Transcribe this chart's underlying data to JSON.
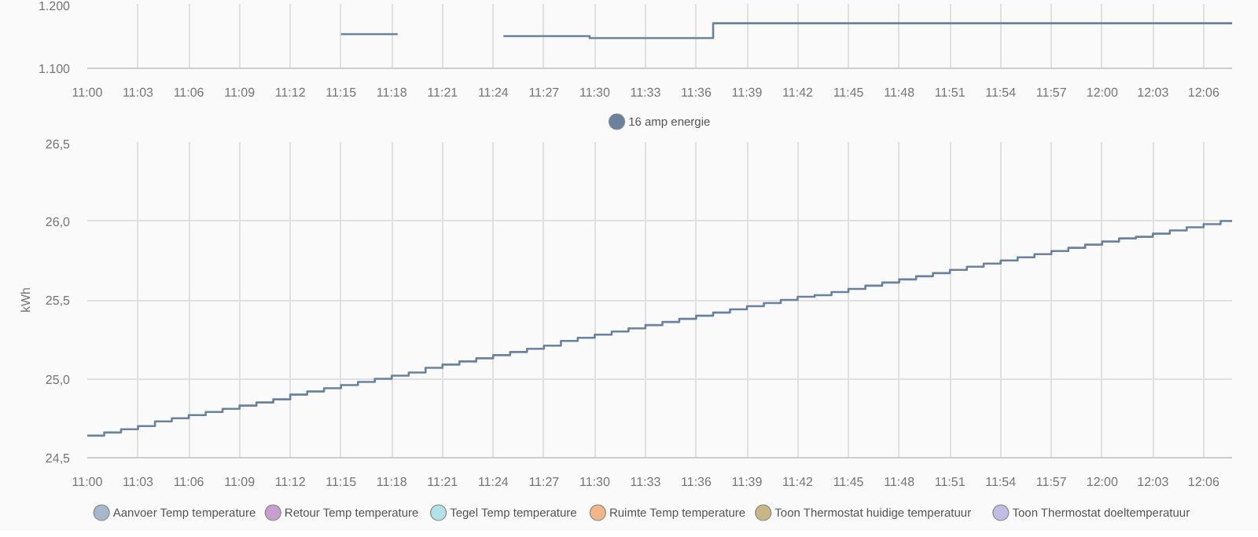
{
  "chart_data": [
    {
      "type": "step",
      "x": [
        11.25,
        11.3058,
        11.41,
        11.495,
        11.6167,
        12.128
      ],
      "series": [
        {
          "color": "#6b829e",
          "values": [
            1153,
            null,
            1150,
            1147,
            1170,
            1170
          ]
        }
      ],
      "xlim": [
        11.0,
        12.128
      ],
      "xticks": [
        {
          "value": 11.0,
          "label": "11:00"
        },
        {
          "value": 11.05,
          "label": "11:03"
        },
        {
          "value": 11.1,
          "label": "11:06"
        },
        {
          "value": 11.15,
          "label": "11:09"
        },
        {
          "value": 11.2,
          "label": "11:12"
        },
        {
          "value": 11.25,
          "label": "11:15"
        },
        {
          "value": 11.3,
          "label": "11:18"
        },
        {
          "value": 11.35,
          "label": "11:21"
        },
        {
          "value": 11.4,
          "label": "11:24"
        },
        {
          "value": 11.45,
          "label": "11:27"
        },
        {
          "value": 11.5,
          "label": "11:30"
        },
        {
          "value": 11.55,
          "label": "11:33"
        },
        {
          "value": 11.6,
          "label": "11:36"
        },
        {
          "value": 11.65,
          "label": "11:39"
        },
        {
          "value": 11.7,
          "label": "11:42"
        },
        {
          "value": 11.75,
          "label": "11:45"
        },
        {
          "value": 11.8,
          "label": "11:48"
        },
        {
          "value": 11.85,
          "label": "11:51"
        },
        {
          "value": 11.9,
          "label": "11:54"
        },
        {
          "value": 11.95,
          "label": "11:57"
        },
        {
          "value": 12.0,
          "label": "12:00"
        },
        {
          "value": 12.05,
          "label": "12:03"
        },
        {
          "value": 12.1,
          "label": "12:06"
        }
      ],
      "ylim": [
        1100,
        1200
      ],
      "yticks": [
        {
          "value": 1100,
          "label": "1.100"
        },
        {
          "value": 1200,
          "label": "1.200"
        }
      ],
      "grid": true
    },
    {
      "type": "step",
      "ylabel": "kWh",
      "x": [
        11.0,
        11.0167,
        11.0333,
        11.05,
        11.0667,
        11.0833,
        11.1,
        11.1167,
        11.1333,
        11.15,
        11.1667,
        11.1833,
        11.2,
        11.2167,
        11.2333,
        11.25,
        11.2667,
        11.2833,
        11.3,
        11.3167,
        11.3333,
        11.35,
        11.3667,
        11.3833,
        11.4,
        11.4167,
        11.4333,
        11.45,
        11.4667,
        11.4833,
        11.5,
        11.5167,
        11.5333,
        11.55,
        11.5667,
        11.5833,
        11.6,
        11.6167,
        11.6333,
        11.65,
        11.6667,
        11.6833,
        11.7,
        11.7167,
        11.7333,
        11.75,
        11.7667,
        11.7833,
        11.8,
        11.8167,
        11.8333,
        11.85,
        11.8667,
        11.8833,
        11.9,
        11.9167,
        11.9333,
        11.95,
        11.9667,
        11.9833,
        12.0,
        12.0167,
        12.0333,
        12.05,
        12.0667,
        12.0833,
        12.1,
        12.1167,
        12.128
      ],
      "series": [
        {
          "name": "16 amp energie",
          "color": "#6b829e",
          "values": [
            24.64,
            24.66,
            24.68,
            24.7,
            24.73,
            24.75,
            24.77,
            24.79,
            24.81,
            24.83,
            24.85,
            24.87,
            24.9,
            24.92,
            24.94,
            24.96,
            24.98,
            25.0,
            25.02,
            25.04,
            25.07,
            25.09,
            25.11,
            25.13,
            25.15,
            25.17,
            25.19,
            25.21,
            25.24,
            25.26,
            25.28,
            25.3,
            25.32,
            25.34,
            25.36,
            25.38,
            25.4,
            25.42,
            25.44,
            25.46,
            25.48,
            25.5,
            25.52,
            25.53,
            25.55,
            25.57,
            25.59,
            25.61,
            25.63,
            25.65,
            25.67,
            25.69,
            25.71,
            25.73,
            25.75,
            25.77,
            25.79,
            25.81,
            25.83,
            25.85,
            25.87,
            25.89,
            25.9,
            25.92,
            25.94,
            25.96,
            25.98,
            26.0,
            26.0
          ]
        }
      ],
      "xlim": [
        11.0,
        12.128
      ],
      "xticks": [
        {
          "value": 11.0,
          "label": "11:00"
        },
        {
          "value": 11.05,
          "label": "11:03"
        },
        {
          "value": 11.1,
          "label": "11:06"
        },
        {
          "value": 11.15,
          "label": "11:09"
        },
        {
          "value": 11.2,
          "label": "11:12"
        },
        {
          "value": 11.25,
          "label": "11:15"
        },
        {
          "value": 11.3,
          "label": "11:18"
        },
        {
          "value": 11.35,
          "label": "11:21"
        },
        {
          "value": 11.4,
          "label": "11:24"
        },
        {
          "value": 11.45,
          "label": "11:27"
        },
        {
          "value": 11.5,
          "label": "11:30"
        },
        {
          "value": 11.55,
          "label": "11:33"
        },
        {
          "value": 11.6,
          "label": "11:36"
        },
        {
          "value": 11.65,
          "label": "11:39"
        },
        {
          "value": 11.7,
          "label": "11:42"
        },
        {
          "value": 11.75,
          "label": "11:45"
        },
        {
          "value": 11.8,
          "label": "11:48"
        },
        {
          "value": 11.85,
          "label": "11:51"
        },
        {
          "value": 11.9,
          "label": "11:54"
        },
        {
          "value": 11.95,
          "label": "11:57"
        },
        {
          "value": 12.0,
          "label": "12:00"
        },
        {
          "value": 12.05,
          "label": "12:03"
        },
        {
          "value": 12.1,
          "label": "12:06"
        }
      ],
      "ylim": [
        24.5,
        26.5
      ],
      "yticks": [
        {
          "value": 24.5,
          "label": "24,5"
        },
        {
          "value": 25.0,
          "label": "25,0"
        },
        {
          "value": 25.5,
          "label": "25,5"
        },
        {
          "value": 26.0,
          "label": "26,0"
        },
        {
          "value": 26.5,
          "label": "26,5"
        }
      ],
      "grid": true,
      "legend": "top"
    },
    {
      "type": "other",
      "legend": "top",
      "series": [
        {
          "name": "Aanvoer Temp temperature",
          "color": "#a9b7cc"
        },
        {
          "name": "Retour Temp temperature",
          "color": "#c69fce"
        },
        {
          "name": "Tegel Temp temperature",
          "color": "#b2e2e6"
        },
        {
          "name": "Ruimte Temp temperature",
          "color": "#f3b58a"
        },
        {
          "name": "Toon Thermostat huidige temperatuur",
          "color": "#c8b784"
        },
        {
          "name": "Toon Thermostat doeltemperatuur",
          "color": "#bdbde6"
        }
      ]
    }
  ]
}
